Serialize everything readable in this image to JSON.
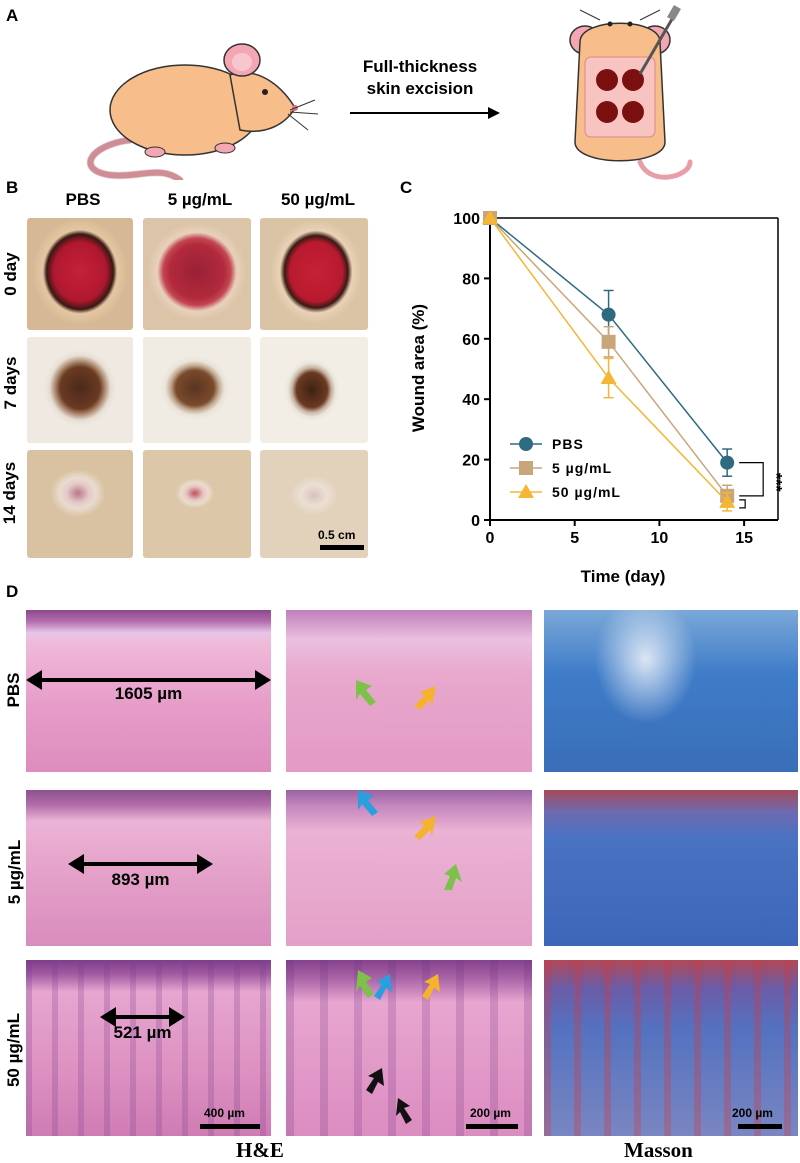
{
  "panel_a": {
    "letter": "A",
    "arrow_text_line1": "Full-thickness",
    "arrow_text_line2": "skin excision"
  },
  "panel_b": {
    "letter": "B",
    "columns": [
      "PBS",
      "5 µg/mL",
      "50 µg/mL"
    ],
    "rows": [
      "0 day",
      "7 days",
      "14 days"
    ],
    "scale_bar": "0.5 cm"
  },
  "panel_c": {
    "letter": "C",
    "significance": "***"
  },
  "panel_d": {
    "letter": "D",
    "rows": [
      "PBS",
      "5 µg/mL",
      "50 µg/mL"
    ],
    "widths": [
      "1605 µm",
      "893 µm",
      "521 µm"
    ],
    "scale_bars": [
      "400 µm",
      "200 µm",
      "200 µm"
    ],
    "footer_he": "H&E",
    "footer_masson": "Masson"
  },
  "chart_data": {
    "type": "line",
    "xlabel": "Time (day)",
    "ylabel": "Wound area (%)",
    "xlim": [
      0,
      17
    ],
    "ylim": [
      0,
      100
    ],
    "xticks": [
      0,
      5,
      10,
      15
    ],
    "yticks": [
      0,
      20,
      40,
      60,
      80,
      100
    ],
    "x": [
      0,
      7,
      14
    ],
    "legend_position": "bottom-left",
    "series": [
      {
        "name": "PBS",
        "values": [
          100,
          68,
          19
        ],
        "errors": [
          0,
          8,
          4.5
        ],
        "color": "#2e6b80",
        "marker": "circle"
      },
      {
        "name": "5 µg/mL",
        "values": [
          100,
          59,
          8
        ],
        "errors": [
          0,
          5,
          3.5
        ],
        "color": "#c9a57a",
        "marker": "square"
      },
      {
        "name": "50 µg/mL",
        "values": [
          100,
          47,
          6
        ],
        "errors": [
          0,
          6.5,
          3
        ],
        "color": "#f5b535",
        "marker": "triangle"
      }
    ]
  }
}
